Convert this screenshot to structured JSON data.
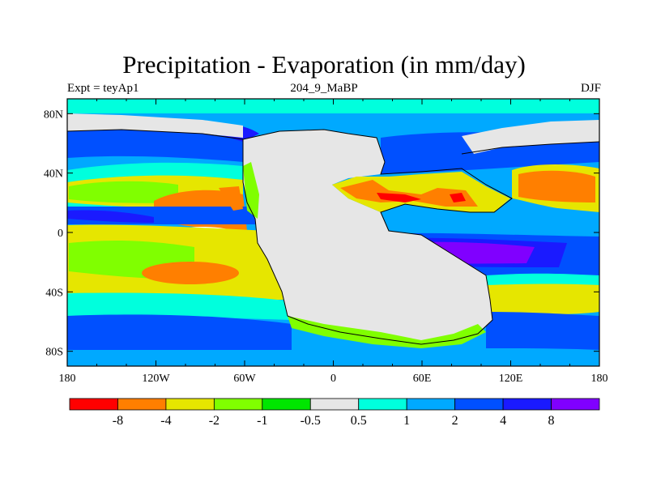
{
  "title": "Precipitation - Evaporation (in mm/day)",
  "subtitle_left": "Expt = teyAp1",
  "subtitle_center": "204_9_MaBP",
  "subtitle_right": "DJF",
  "x_ticks": [
    "180",
    "120W",
    "60W",
    "0",
    "60E",
    "120E",
    "180"
  ],
  "y_ticks": [
    "80N",
    "40N",
    "0",
    "40S",
    "80S"
  ],
  "colorbar": {
    "colors": [
      "#ff0000",
      "#ff7f00",
      "#e6e600",
      "#80ff00",
      "#00e600",
      "#e6e6e6",
      "#00ffdd",
      "#00a9ff",
      "#0050ff",
      "#1a1aff",
      "#8000ff"
    ],
    "labels": [
      "-8",
      "-4",
      "-2",
      "-1",
      "-0.5",
      "0.5",
      "1",
      "2",
      "4",
      "8"
    ]
  },
  "colors": {
    "ocean_deep_blue": "#1a1aff",
    "land_gray": "#e6e6e6",
    "coastline": "#000000"
  }
}
